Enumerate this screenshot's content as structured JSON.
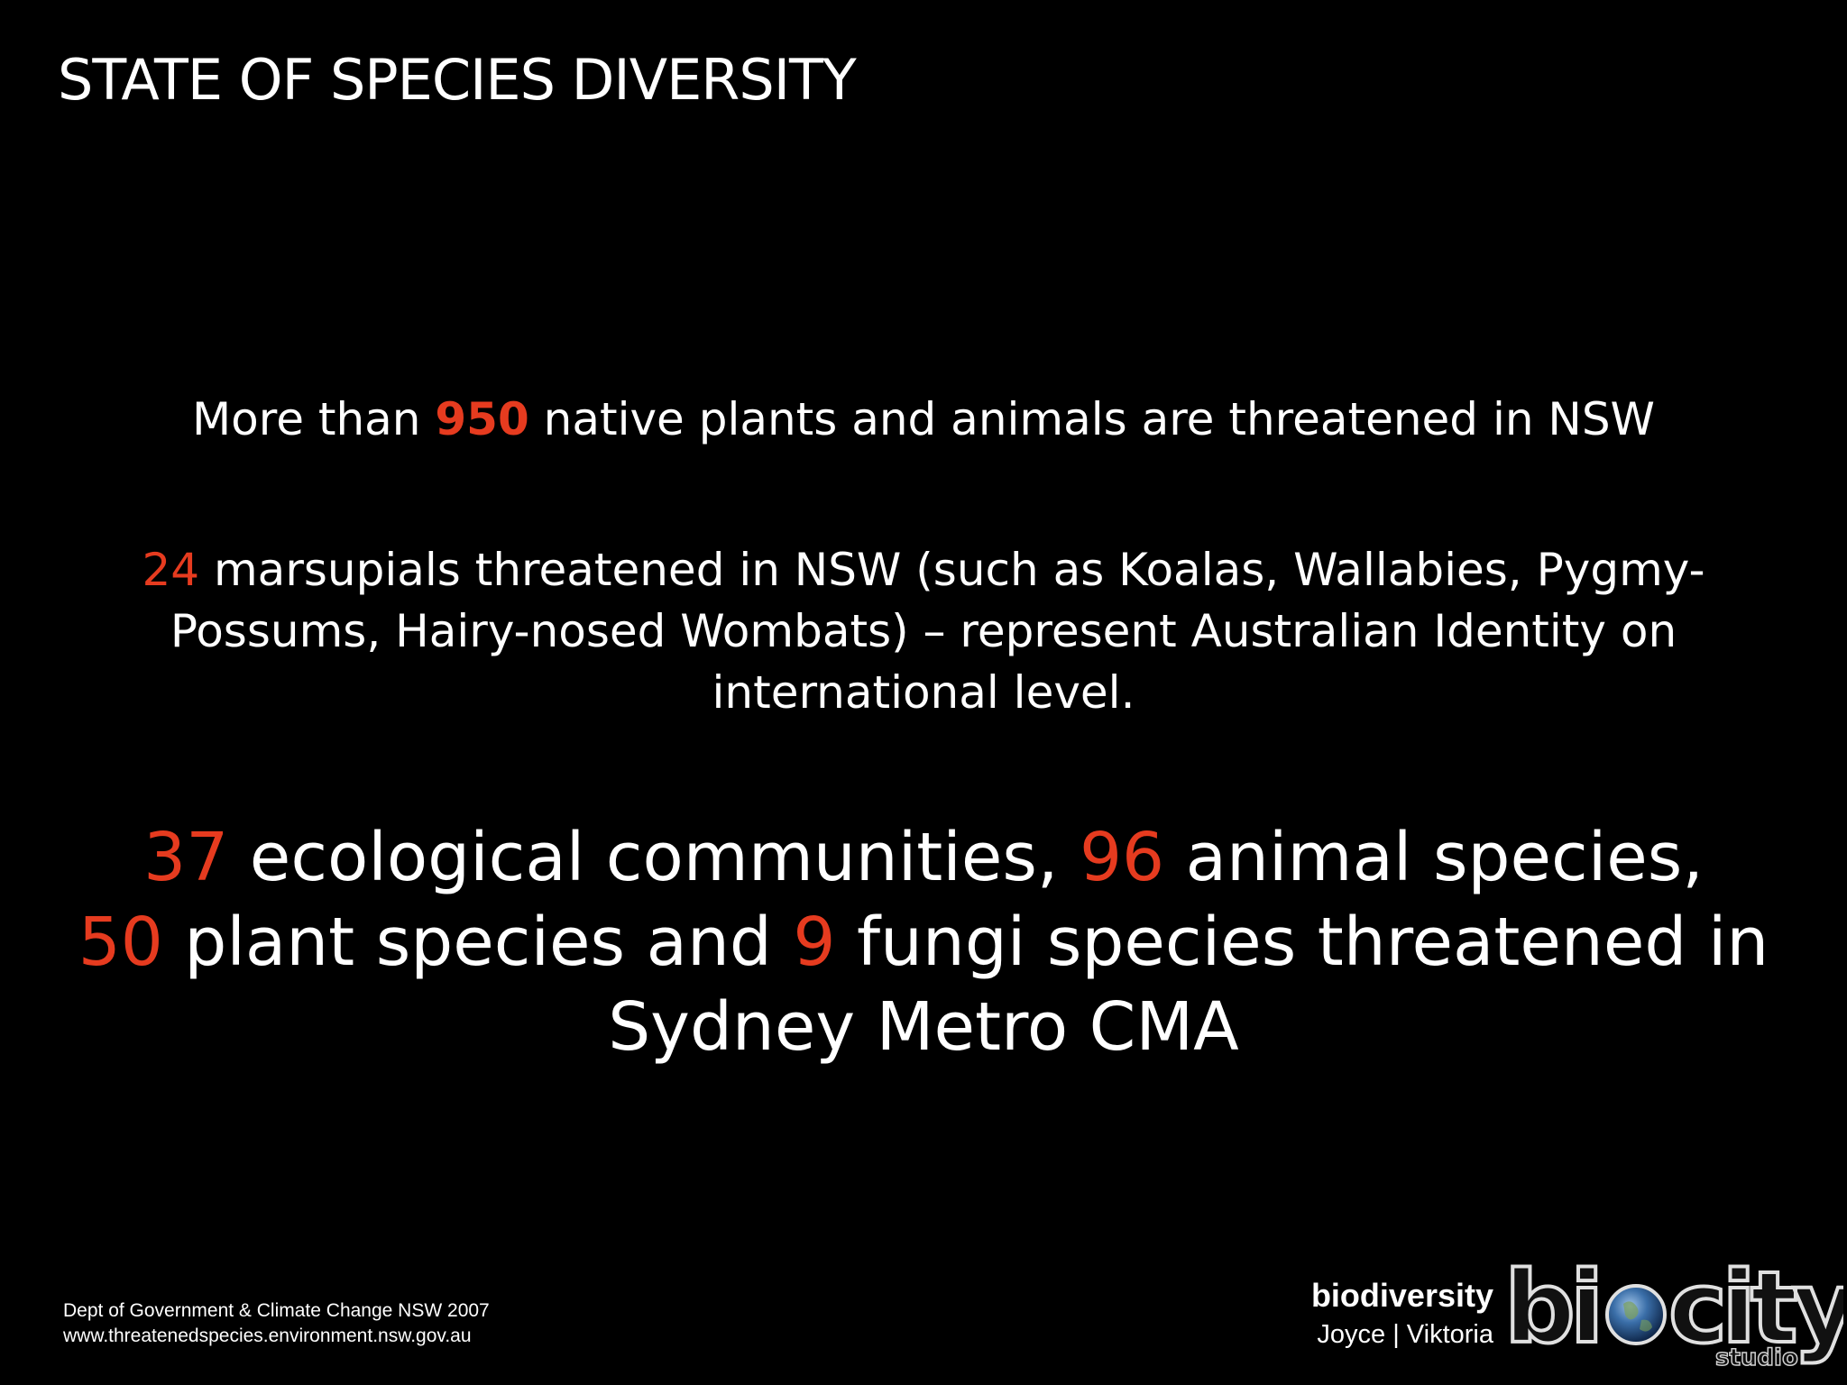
{
  "slide": {
    "title": "STATE OF SPECIES DIVERSITY",
    "line1": {
      "before": "More than ",
      "number": "950",
      "after": " native plants and animals are threatened in NSW"
    },
    "para2": {
      "number": "24",
      "text": " marsupials threatened in NSW (such as Koalas, Wallabies, Pygmy-Possums, Hairy-nosed Wombats) – represent Australian Identity on international level."
    },
    "para3": {
      "n1": "37",
      "t1": " ecological communities, ",
      "n2": "96",
      "t2": " animal species, ",
      "n3": "50",
      "t3": " plant species and ",
      "n4": "9",
      "t4": " fungi species threatened in Sydney Metro CMA"
    }
  },
  "footer": {
    "source_line1": "Dept of Government & Climate Change NSW  2007",
    "source_line2": "www.threatenedspecies.environment.nsw.gov.au",
    "brand_line1": "biodiversity",
    "brand_line2": "Joyce  |  Viktoria",
    "logo_text": "biocity",
    "logo_sub": "studio"
  },
  "colors": {
    "background": "#000000",
    "text": "#ffffff",
    "accent": "#e63b1f"
  },
  "icons": {
    "logo_globe": "earth-globe-icon"
  }
}
